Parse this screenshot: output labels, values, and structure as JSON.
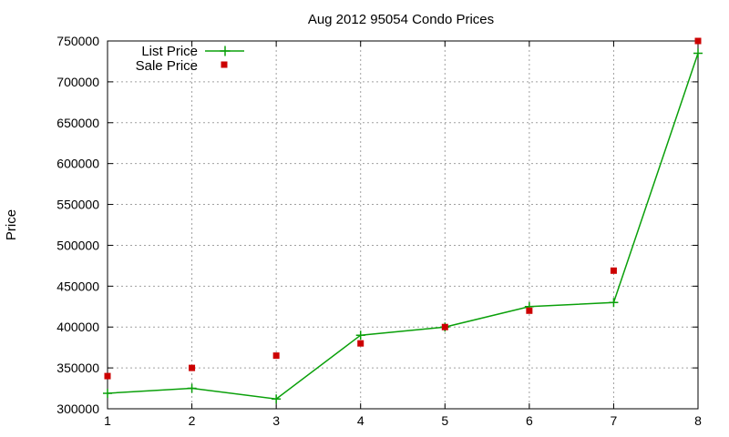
{
  "chart_data": {
    "type": "line",
    "title": "Aug 2012 95054 Condo Prices",
    "xlabel": "",
    "ylabel": "Price",
    "xlim": [
      1,
      8
    ],
    "ylim": [
      300000,
      750000
    ],
    "xticks": [
      1,
      2,
      3,
      4,
      5,
      6,
      7,
      8
    ],
    "yticks": [
      300000,
      350000,
      400000,
      450000,
      500000,
      550000,
      600000,
      650000,
      700000,
      750000
    ],
    "grid": true,
    "legend_position": "top-left",
    "series": [
      {
        "name": "List Price",
        "style": "line-with-plus-markers",
        "color": "#0aa00a",
        "x": [
          1,
          2,
          3,
          4,
          5,
          6,
          7,
          8
        ],
        "y": [
          319000,
          325000,
          312000,
          390000,
          400000,
          425000,
          430000,
          735000
        ]
      },
      {
        "name": "Sale Price",
        "style": "square-markers",
        "color": "#cc0000",
        "x": [
          1,
          2,
          3,
          4,
          5,
          6,
          7,
          8
        ],
        "y": [
          340000,
          350000,
          365000,
          380000,
          400000,
          420000,
          469000,
          750000
        ]
      }
    ]
  }
}
